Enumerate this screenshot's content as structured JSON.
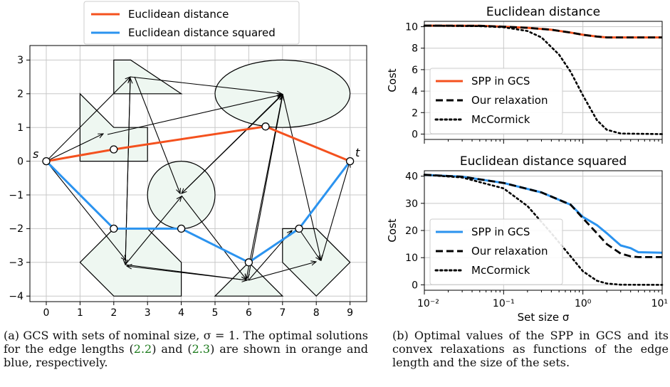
{
  "figure_a": {
    "legend": [
      {
        "label": "Euclidean distance",
        "color": "#f4511e"
      },
      {
        "label": "Euclidean distance squared",
        "color": "#2b93ef"
      }
    ],
    "x_ticks": [
      "0",
      "1",
      "2",
      "3",
      "4",
      "5",
      "6",
      "7",
      "8",
      "9"
    ],
    "y_ticks": [
      "3",
      "2",
      "1",
      "0",
      "−1",
      "−2",
      "−3",
      "−4"
    ],
    "source_label": "s",
    "target_label": "t",
    "set_fill": "#eef7f1"
  },
  "caption_a": {
    "prefix": "(a) GCS with sets of nominal size, σ = 1. The optimal solutions for the edge lengths (",
    "ref1": "2.2",
    "middle": ") and (",
    "ref2": "2.3",
    "suffix": ") are shown in orange and blue, respectively."
  },
  "caption_b": {
    "text": "(b) Optimal values of the SPP in GCS and its convex relaxations as functions of the edge length and the size of the sets."
  },
  "chart_data": [
    {
      "type": "line",
      "title": "Euclidean distance",
      "xlabel": "",
      "ylabel": "Cost",
      "x_scale": "log",
      "xlim": [
        0.01,
        10
      ],
      "ylim": [
        -0.5,
        10.5
      ],
      "y_ticks": [
        "0",
        "2",
        "4",
        "6",
        "8",
        "10"
      ],
      "grid": true,
      "legend_position": "lower-left",
      "series": [
        {
          "name": "SPP in GCS",
          "style": "solid",
          "color": "#f4511e",
          "x": [
            0.01,
            0.05,
            0.1,
            0.2,
            0.4,
            0.7,
            1.0,
            1.5,
            2,
            3,
            5,
            10
          ],
          "y": [
            10.1,
            10.08,
            10.0,
            9.9,
            9.72,
            9.45,
            9.25,
            9.08,
            9.0,
            9.0,
            9.0,
            9.0
          ]
        },
        {
          "name": "Our relaxation",
          "style": "dashed",
          "color": "#000000",
          "x": [
            0.01,
            0.05,
            0.1,
            0.2,
            0.4,
            0.7,
            1.0,
            1.5,
            2,
            3,
            5,
            10
          ],
          "y": [
            10.1,
            10.08,
            10.0,
            9.9,
            9.72,
            9.45,
            9.25,
            9.08,
            9.0,
            9.0,
            9.0,
            9.0
          ]
        },
        {
          "name": "McCormick",
          "style": "dotted",
          "color": "#000000",
          "x": [
            0.01,
            0.05,
            0.1,
            0.2,
            0.3,
            0.5,
            0.7,
            1.0,
            1.5,
            2,
            3,
            10
          ],
          "y": [
            10.1,
            10.05,
            9.95,
            9.6,
            9.0,
            7.4,
            5.8,
            3.6,
            1.3,
            0.4,
            0.05,
            0.0
          ]
        }
      ]
    },
    {
      "type": "line",
      "title": "Euclidean distance squared",
      "xlabel": "Set size σ",
      "ylabel": "Cost",
      "x_scale": "log",
      "xlim": [
        0.01,
        10
      ],
      "ylim": [
        -2,
        42
      ],
      "y_ticks": [
        "0",
        "10",
        "20",
        "30",
        "40"
      ],
      "x_ticks": [
        "10⁻²",
        "10⁻¹",
        "10⁰",
        "10¹"
      ],
      "grid": true,
      "legend_position": "lower-left",
      "series": [
        {
          "name": "SPP in GCS",
          "style": "solid",
          "color": "#2b93ef",
          "x": [
            0.01,
            0.03,
            0.1,
            0.3,
            0.7,
            1.0,
            1.5,
            2,
            2.5,
            3,
            4,
            5,
            10
          ],
          "y": [
            40.5,
            39.8,
            37.5,
            34.0,
            29.5,
            25.0,
            22.0,
            19.0,
            16.5,
            14.5,
            13.5,
            12.0,
            11.8
          ]
        },
        {
          "name": "Our relaxation",
          "style": "dashed",
          "color": "#000000",
          "x": [
            0.01,
            0.03,
            0.1,
            0.3,
            0.7,
            1.0,
            1.5,
            2,
            3,
            4,
            5,
            10
          ],
          "y": [
            40.5,
            39.8,
            37.5,
            34.0,
            29.5,
            24.5,
            19.0,
            15.0,
            11.5,
            10.5,
            10.2,
            10.2
          ]
        },
        {
          "name": "McCormick",
          "style": "dotted",
          "color": "#000000",
          "x": [
            0.01,
            0.03,
            0.1,
            0.2,
            0.4,
            0.7,
            1.0,
            1.5,
            2,
            3,
            10
          ],
          "y": [
            40.5,
            39.5,
            35.5,
            29.0,
            19.0,
            10.5,
            5.0,
            1.5,
            0.5,
            0.05,
            0.0
          ]
        }
      ]
    }
  ]
}
